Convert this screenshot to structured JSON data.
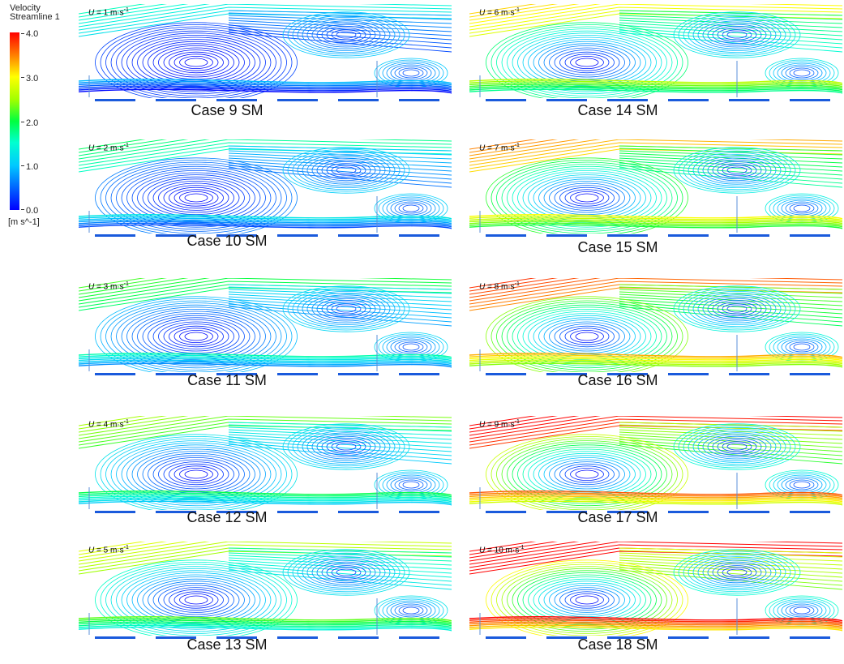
{
  "legend": {
    "title_line1": "Velocity",
    "title_line2": "Streamline 1",
    "ticks": [
      "4.0",
      "3.0",
      "2.0",
      "1.0",
      "0.0"
    ],
    "unit": "[m s^-1]",
    "colors": [
      "#ff0000",
      "#ffff00",
      "#00ff40",
      "#00c8ff",
      "#0000ff"
    ]
  },
  "panels": [
    {
      "u_prefix": "U",
      "u_text": " = 1 m·s",
      "u_exp": "-1",
      "caption": "Case 9 SM",
      "speed": 1
    },
    {
      "u_prefix": "U",
      "u_text": " = 2 m·s",
      "u_exp": "-1",
      "caption": "Case 10 SM",
      "speed": 2
    },
    {
      "u_prefix": "U",
      "u_text": " = 3 m·s",
      "u_exp": "-1",
      "caption": "Case 11 SM",
      "speed": 3
    },
    {
      "u_prefix": "U",
      "u_text": " = 4 m·s",
      "u_exp": "-1",
      "caption": "Case 12 SM",
      "speed": 4
    },
    {
      "u_prefix": "U",
      "u_text": " = 5 m·s",
      "u_exp": "-1",
      "caption": "Case 13 SM",
      "speed": 5
    },
    {
      "u_prefix": "U",
      "u_text": " = 6 m·s",
      "u_exp": "-1",
      "caption": "Case 14 SM",
      "speed": 6
    },
    {
      "u_prefix": "U",
      "u_text": " = 7 m·s",
      "u_exp": "-1",
      "caption": "Case 15 SM",
      "speed": 7
    },
    {
      "u_prefix": "U",
      "u_text": " = 8 m·s",
      "u_exp": "-1",
      "caption": "Case 16 SM",
      "speed": 8
    },
    {
      "u_prefix": "U",
      "u_text": " = 9 m·s",
      "u_exp": "-1",
      "caption": "Case 17 SM",
      "speed": 9
    },
    {
      "u_prefix": "U",
      "u_text": " = 10 m·s",
      "u_exp": "-1",
      "caption": "Case 18 SM",
      "speed": 10
    }
  ]
}
